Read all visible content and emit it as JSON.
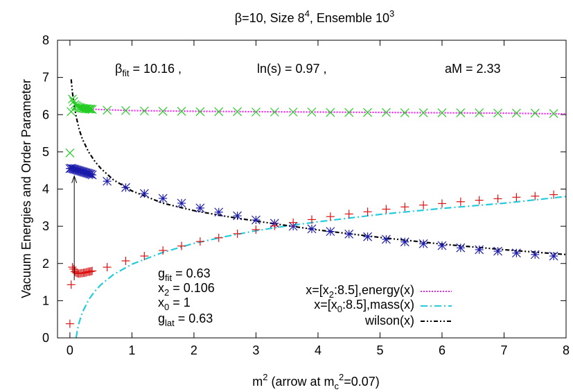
{
  "chart_data": {
    "type": "scatter",
    "title": "β=10, Size 8⁴, Ensemble 10³",
    "xlabel": "m² (arrow at m_c²=0.07)",
    "ylabel": "Vacuum Energies and Order Parameter",
    "xlim": [
      -0.2,
      8
    ],
    "ylim": [
      0,
      8
    ],
    "xticks": [
      0,
      1,
      2,
      3,
      4,
      5,
      6,
      7,
      8
    ],
    "yticks": [
      0,
      1,
      2,
      3,
      4,
      5,
      6,
      7,
      8
    ],
    "grid": false,
    "legend_position": "bottom-right",
    "top_annotations": {
      "beta_fit": "β_fit = 10.16 ,",
      "ln_s": "ln(s) = 0.97 ,",
      "aM": "aM = 2.33"
    },
    "params": [
      {
        "sym": "g",
        "sub": "fit",
        "rest": " = 0.63"
      },
      {
        "sym": "x",
        "sub": "2",
        "rest": " = 0.106"
      },
      {
        "sym": "x",
        "sub": "0",
        "rest": " = 1"
      },
      {
        "sym": "g",
        "sub": "lat",
        "rest": " = 0.63"
      }
    ],
    "arrow": {
      "x": 0.07,
      "y_from": 1.55,
      "y_to": 4.35
    },
    "scatter_series": [
      {
        "marker": "x-cross",
        "color": "#22cc22",
        "x": [
          0.0,
          0.02,
          0.04,
          0.06,
          0.08,
          0.1,
          0.12,
          0.14,
          0.16,
          0.18,
          0.2,
          0.22,
          0.24,
          0.26,
          0.28,
          0.3,
          0.32,
          0.34,
          0.36,
          0.6,
          0.9,
          1.2,
          1.5,
          1.8,
          2.1,
          2.4,
          2.7,
          3.0,
          3.3,
          3.6,
          3.9,
          4.2,
          4.5,
          4.8,
          5.1,
          5.4,
          5.7,
          6.0,
          6.3,
          6.6,
          6.9,
          7.2,
          7.5,
          7.8
        ],
        "y": [
          4.97,
          6.08,
          6.42,
          6.35,
          6.27,
          6.24,
          6.22,
          6.2,
          6.19,
          6.18,
          6.17,
          6.17,
          6.16,
          6.16,
          6.16,
          6.15,
          6.15,
          6.15,
          6.14,
          6.12,
          6.11,
          6.1,
          6.09,
          6.09,
          6.08,
          6.08,
          6.08,
          6.07,
          6.07,
          6.07,
          6.07,
          6.06,
          6.06,
          6.06,
          6.06,
          6.05,
          6.05,
          6.05,
          6.05,
          6.05,
          6.04,
          6.04,
          6.04,
          6.03
        ]
      },
      {
        "marker": "asterisk",
        "color": "#1a1aaa",
        "x": [
          0.0,
          0.02,
          0.04,
          0.06,
          0.08,
          0.1,
          0.12,
          0.14,
          0.16,
          0.18,
          0.2,
          0.22,
          0.24,
          0.26,
          0.28,
          0.3,
          0.32,
          0.34,
          0.36,
          0.6,
          0.9,
          1.2,
          1.5,
          1.8,
          2.1,
          2.4,
          2.7,
          3.0,
          3.3,
          3.6,
          3.9,
          4.2,
          4.5,
          4.8,
          5.1,
          5.4,
          5.7,
          6.0,
          6.3,
          6.6,
          6.9,
          7.2,
          7.5,
          7.8
        ],
        "y": [
          4.55,
          4.56,
          4.55,
          4.54,
          4.53,
          4.52,
          4.51,
          4.5,
          4.49,
          4.48,
          4.47,
          4.46,
          4.45,
          4.44,
          4.43,
          4.42,
          4.41,
          4.4,
          4.38,
          4.21,
          4.04,
          3.88,
          3.75,
          3.62,
          3.49,
          3.38,
          3.28,
          3.17,
          3.08,
          3.0,
          2.93,
          2.86,
          2.79,
          2.72,
          2.65,
          2.58,
          2.53,
          2.48,
          2.42,
          2.37,
          2.33,
          2.28,
          2.24,
          2.2
        ]
      },
      {
        "marker": "plus",
        "color": "#dd1111",
        "x": [
          0.0,
          0.02,
          0.04,
          0.06,
          0.08,
          0.1,
          0.12,
          0.14,
          0.16,
          0.18,
          0.2,
          0.22,
          0.24,
          0.26,
          0.28,
          0.3,
          0.32,
          0.34,
          0.36,
          0.6,
          0.9,
          1.2,
          1.5,
          1.8,
          2.1,
          2.4,
          2.7,
          3.0,
          3.3,
          3.6,
          3.9,
          4.2,
          4.5,
          4.8,
          5.1,
          5.4,
          5.7,
          6.0,
          6.3,
          6.6,
          6.9,
          7.2,
          7.5,
          7.8
        ],
        "y": [
          0.38,
          1.43,
          1.9,
          1.85,
          1.78,
          1.75,
          1.74,
          1.73,
          1.73,
          1.74,
          1.74,
          1.75,
          1.75,
          1.76,
          1.77,
          1.78,
          1.78,
          1.79,
          1.8,
          1.9,
          2.07,
          2.2,
          2.35,
          2.47,
          2.59,
          2.69,
          2.8,
          2.91,
          3.01,
          3.1,
          3.18,
          3.26,
          3.33,
          3.39,
          3.46,
          3.52,
          3.57,
          3.61,
          3.66,
          3.7,
          3.74,
          3.78,
          3.81,
          3.85
        ]
      }
    ],
    "line_series": [
      {
        "name": "x=[x₂:8.5],energy(x)",
        "color": "#ee22ee",
        "dash": "2,2",
        "x": [
          0.106,
          0.3,
          0.6,
          1.0,
          1.5,
          2.0,
          3.0,
          4.0,
          5.0,
          6.0,
          7.0,
          8.0
        ],
        "y": [
          6.25,
          6.15,
          6.13,
          6.11,
          6.1,
          6.09,
          6.08,
          6.07,
          6.06,
          6.05,
          6.04,
          6.02
        ]
      },
      {
        "name": "x=[x₀:8.5],mass(x)",
        "color": "#22ccdd",
        "dash": "10,4,2,4",
        "x": [
          0.1,
          0.12,
          0.15,
          0.2,
          0.3,
          0.4,
          0.5,
          0.7,
          1.0,
          1.5,
          2.0,
          2.5,
          3.0,
          3.5,
          4.0,
          5.0,
          6.0,
          7.0,
          8.0
        ],
        "y": [
          -0.02,
          0.2,
          0.42,
          0.68,
          1.02,
          1.25,
          1.43,
          1.7,
          1.98,
          2.3,
          2.54,
          2.72,
          2.88,
          3.01,
          3.12,
          3.32,
          3.48,
          3.62,
          3.8
        ]
      },
      {
        "name": "wilson(x)",
        "color": "#000000",
        "dash": "6,3,2,3,2,3",
        "x": [
          0.02,
          0.04,
          0.07,
          0.1,
          0.15,
          0.2,
          0.3,
          0.4,
          0.5,
          0.7,
          1.0,
          1.5,
          2.0,
          2.5,
          3.0,
          3.5,
          4.0,
          5.0,
          6.0,
          7.0,
          8.0
        ],
        "y": [
          6.95,
          6.6,
          6.25,
          5.95,
          5.6,
          5.35,
          5.0,
          4.75,
          4.55,
          4.25,
          3.95,
          3.62,
          3.42,
          3.27,
          3.14,
          3.02,
          2.9,
          2.7,
          2.52,
          2.37,
          2.24
        ]
      }
    ]
  }
}
